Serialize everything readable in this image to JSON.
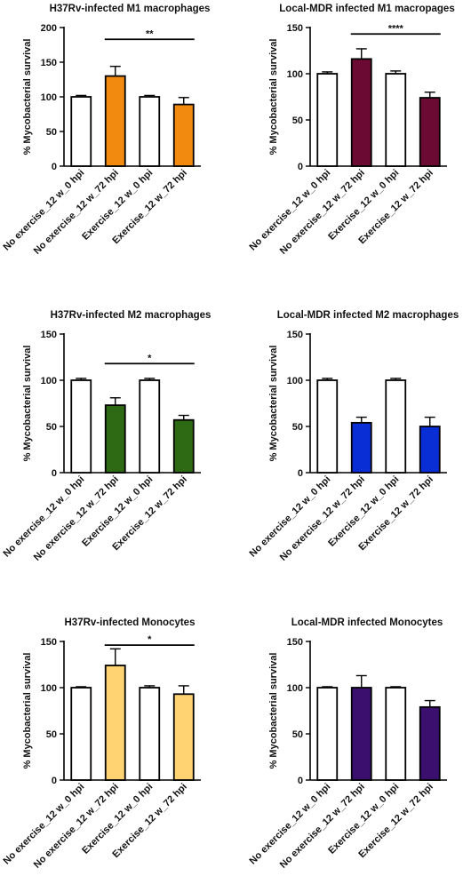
{
  "chart_data": [
    {
      "type": "bar",
      "title": "H37Rv-infected M1 macrophages",
      "ylabel": "% Mycobacterial survival",
      "ylim": [
        0,
        200
      ],
      "yticks": [
        0,
        50,
        100,
        150,
        200
      ],
      "categories": [
        "No exercise_12 w_0 hpi",
        "No exercise_12 w_72 hpi",
        "Exercise_12 w_0 hpi",
        "Exercise_12 w_72 hpi"
      ],
      "values": [
        100,
        130,
        100,
        89
      ],
      "errors": [
        2,
        14,
        2,
        10
      ],
      "colors": [
        "#ffffff",
        "#f28a0f",
        "#ffffff",
        "#f28a0f"
      ],
      "significance": {
        "from": 1,
        "to": 3,
        "label": "**",
        "y": 183
      }
    },
    {
      "type": "bar",
      "title": "Local-MDR infected M1 macropages",
      "ylabel": "% Mycobacterial survival",
      "ylim": [
        0,
        150
      ],
      "yticks": [
        0,
        50,
        100,
        150
      ],
      "categories": [
        "No exercise_12 w_0 hpi",
        "No exercise_12 w_72 hpi",
        "Exercise_12 w_0 hpi",
        "Exercise_12 w_72 hpi"
      ],
      "values": [
        100,
        116,
        100,
        74
      ],
      "errors": [
        2,
        11,
        3,
        6
      ],
      "colors": [
        "#ffffff",
        "#6b0a32",
        "#ffffff",
        "#6b0a32"
      ],
      "significance": {
        "from": 1,
        "to": 3,
        "label": "****",
        "y": 143
      }
    },
    {
      "type": "bar",
      "title": "H37Rv-infected M2 macrophages",
      "ylabel": "% Mycobacterial survival",
      "ylim": [
        0,
        150
      ],
      "yticks": [
        0,
        50,
        100,
        150
      ],
      "categories": [
        "No exercise_12 w_0 hpi",
        "No exercise_12 w_72 hpi",
        "Exercise_12 w_0 hpi",
        "Exercise_12 w_72 hpi"
      ],
      "values": [
        100,
        73,
        100,
        57
      ],
      "errors": [
        2,
        8,
        2,
        5
      ],
      "colors": [
        "#ffffff",
        "#2e6a14",
        "#ffffff",
        "#2e6a14"
      ],
      "significance": {
        "from": 1,
        "to": 3,
        "label": "*",
        "y": 118
      }
    },
    {
      "type": "bar",
      "title": "Local-MDR infected M2 macrophages",
      "ylabel": "% Mycobacterial survival",
      "ylim": [
        0,
        150
      ],
      "yticks": [
        0,
        50,
        100,
        150
      ],
      "categories": [
        "No exercise_12 w_0 hpi",
        "No exercise_12 w_72 hpi",
        "Exercise_12 w_0 hpi",
        "Exercise_12 w_72 hpi"
      ],
      "values": [
        100,
        54,
        100,
        50
      ],
      "errors": [
        2,
        6,
        2,
        10
      ],
      "colors": [
        "#ffffff",
        "#0a2ed6",
        "#ffffff",
        "#0a2ed6"
      ]
    },
    {
      "type": "bar",
      "title": "H37Rv-infected Monocytes",
      "ylabel": "% Mycobacterial survival",
      "ylim": [
        0,
        150
      ],
      "yticks": [
        0,
        50,
        100,
        150
      ],
      "categories": [
        "No exercise_12 w_0 hpi",
        "No exercise_12 w_72 hpi",
        "Exercise_12 w_0 hpi",
        "Exercise_12 w_72 hpi"
      ],
      "values": [
        100,
        124,
        100,
        93
      ],
      "errors": [
        1,
        18,
        2,
        9
      ],
      "colors": [
        "#ffffff",
        "#ffd272",
        "#ffffff",
        "#ffd272"
      ],
      "significance": {
        "from": 1,
        "to": 3,
        "label": "*",
        "y": 146
      }
    },
    {
      "type": "bar",
      "title": "Local-MDR infected Monocytes",
      "ylabel": "% Mycobacterial survival",
      "ylim": [
        0,
        150
      ],
      "yticks": [
        0,
        50,
        100,
        150
      ],
      "categories": [
        "No exercise_12 w_0 hpi",
        "No exercise_12 w_72 hpi",
        "Exercise_12 w_0 hpi",
        "Exercise_12 w_72 hpi"
      ],
      "values": [
        100,
        100,
        100,
        79
      ],
      "errors": [
        1,
        13,
        1,
        7
      ],
      "colors": [
        "#ffffff",
        "#3a0f6e",
        "#ffffff",
        "#3a0f6e"
      ]
    }
  ]
}
